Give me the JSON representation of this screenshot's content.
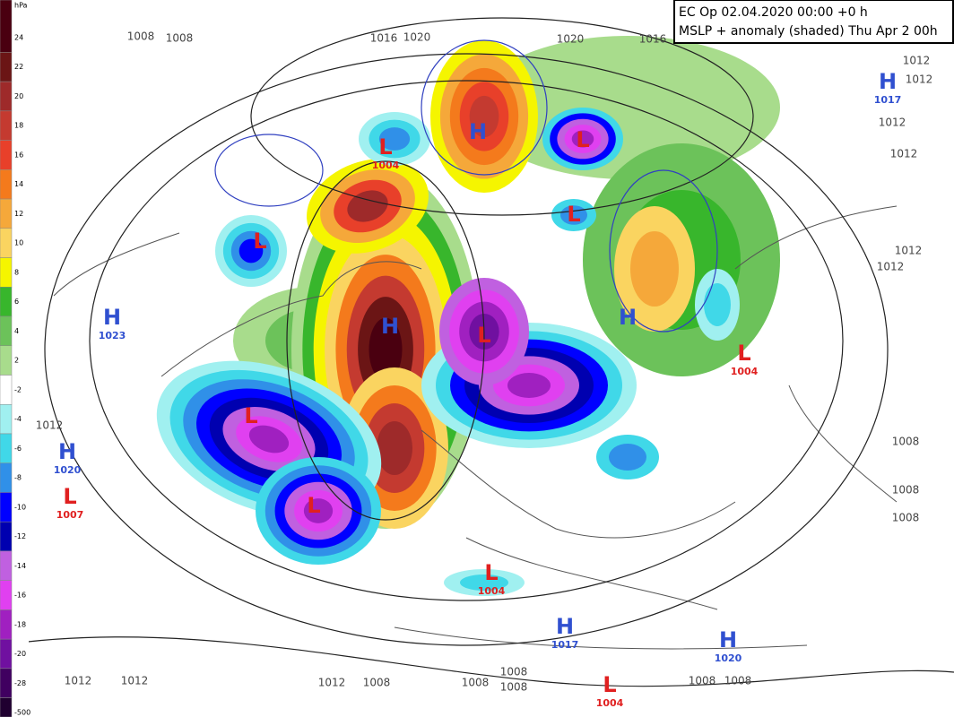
{
  "header": {
    "line1": "EC Op 02.04.2020 00:00 +0 h",
    "line2": "MSLP + anomaly (shaded) Thu Apr 2 00h"
  },
  "colorbar": {
    "unit": "hPa",
    "labels": [
      24,
      22,
      20,
      18,
      16,
      14,
      12,
      10,
      8,
      6,
      4,
      2,
      -2,
      -4,
      -6,
      -8,
      -10,
      -12,
      -14,
      -16,
      -18,
      -20,
      -28,
      -500
    ],
    "colors": [
      "#4a0010",
      "#6b1515",
      "#9e2a2a",
      "#c43a30",
      "#e8402a",
      "#f47a1c",
      "#f5a83a",
      "#fad460",
      "#f5f500",
      "#38b62c",
      "#6cc25a",
      "#a8dc8c",
      "#ffffff",
      "#a0f0f0",
      "#40d8e8",
      "#3090e8",
      "#0000ff",
      "#0000b0",
      "#c060e0",
      "#e040f0",
      "#a020c0",
      "#7010a0",
      "#400060",
      "#200030"
    ]
  },
  "systems": [
    {
      "letter": "L",
      "pressure": 1004
    },
    {
      "letter": "H"
    },
    {
      "letter": "L"
    },
    {
      "letter": "L"
    },
    {
      "letter": "L"
    },
    {
      "letter": "H",
      "pressure": 1023
    },
    {
      "letter": "H"
    },
    {
      "letter": "L"
    },
    {
      "letter": "H"
    },
    {
      "letter": "L",
      "pressure": 1004
    },
    {
      "letter": "H",
      "pressure": 1017
    },
    {
      "letter": "H",
      "pressure": 1020
    },
    {
      "letter": "L",
      "pressure": 1007
    },
    {
      "letter": "L",
      "pressure": 1004
    },
    {
      "letter": "H",
      "pressure": 1017
    },
    {
      "letter": "H",
      "pressure": 1020
    },
    {
      "letter": "L",
      "pressure": 1004
    },
    {
      "letter": "L"
    },
    {
      "letter": "L"
    }
  ],
  "isobar_labels": [
    1008,
    1008,
    1016,
    1020,
    1020,
    1016,
    1012,
    1012,
    1012,
    1012,
    1012,
    1012,
    1012,
    1008,
    1008,
    1008,
    1012,
    1012,
    1012,
    1008,
    1008,
    1008,
    1008,
    1008,
    1008
  ]
}
